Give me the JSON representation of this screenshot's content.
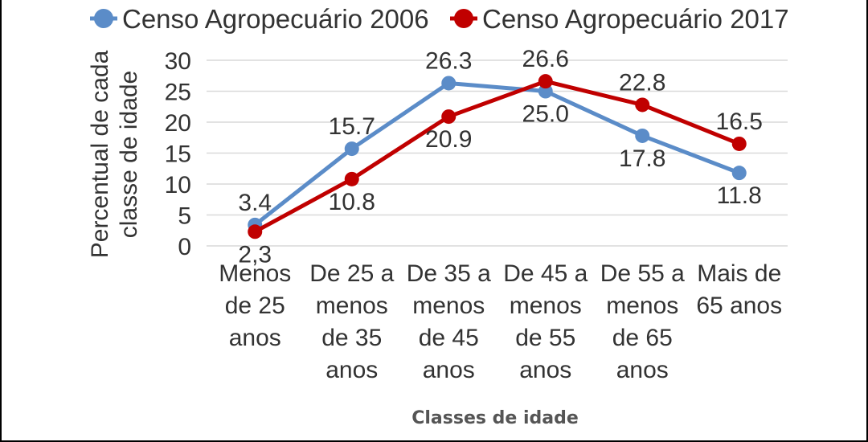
{
  "chart_data": {
    "type": "line",
    "title": "",
    "xlabel": "Classes de idade",
    "ylabel": [
      "Percentual de cada",
      "classe de idade"
    ],
    "ylim": [
      0,
      30
    ],
    "yticks": [
      "0",
      "5",
      "10",
      "15",
      "20",
      "25",
      "30"
    ],
    "grid": true,
    "legend_position": "top",
    "categories": [
      [
        "Menos",
        "de 25",
        "anos"
      ],
      [
        "De 25 a",
        "menos",
        "de 35",
        "anos"
      ],
      [
        "De 35 a",
        "menos",
        "de 45",
        "anos"
      ],
      [
        "De 45 a",
        "menos",
        "de 55",
        "anos"
      ],
      [
        "De 55 a",
        "menos",
        "de 65",
        "anos"
      ],
      [
        "Mais de",
        "65 anos"
      ]
    ],
    "series": [
      {
        "name": "Censo Agropecuário 2006",
        "color": "#5b8cc8",
        "values": [
          3.4,
          15.7,
          26.3,
          25.0,
          17.8,
          11.8
        ],
        "labels": [
          "3.4",
          "15.7",
          "26.3",
          "25.0",
          "17.8",
          "11.8"
        ]
      },
      {
        "name": "Censo Agropecuário 2017",
        "color": "#c00000",
        "values": [
          2.3,
          10.8,
          20.9,
          26.6,
          22.8,
          16.5
        ],
        "labels": [
          "2,3",
          "10.8",
          "20.9",
          "26.6",
          "22.8",
          "16.5"
        ]
      }
    ]
  }
}
